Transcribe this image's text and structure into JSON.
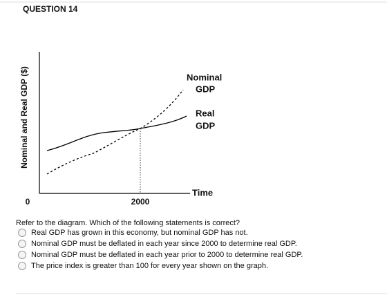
{
  "header": {
    "title": "QUESTION 14"
  },
  "diagram": {
    "y_axis_label": "Nominal and Real GDP ($)",
    "x_axis_label": "Time",
    "origin_label": "0",
    "year_label": "2000",
    "nominal_label": [
      "Nominal",
      "GDP"
    ],
    "real_label": [
      "Real",
      "GDP"
    ]
  },
  "question": {
    "prompt": "Refer to the diagram. Which of the following statements is correct?",
    "options": [
      "Real GDP has grown in this economy, but nominal GDP has not.",
      "Nominal GDP must be deflated in each year since 2000 to determine real GDP.",
      "Nominal GDP must be deflated in each year prior to 2000 to determine real GDP.",
      "The price index is greater than 100 for every year shown on the graph."
    ]
  }
}
